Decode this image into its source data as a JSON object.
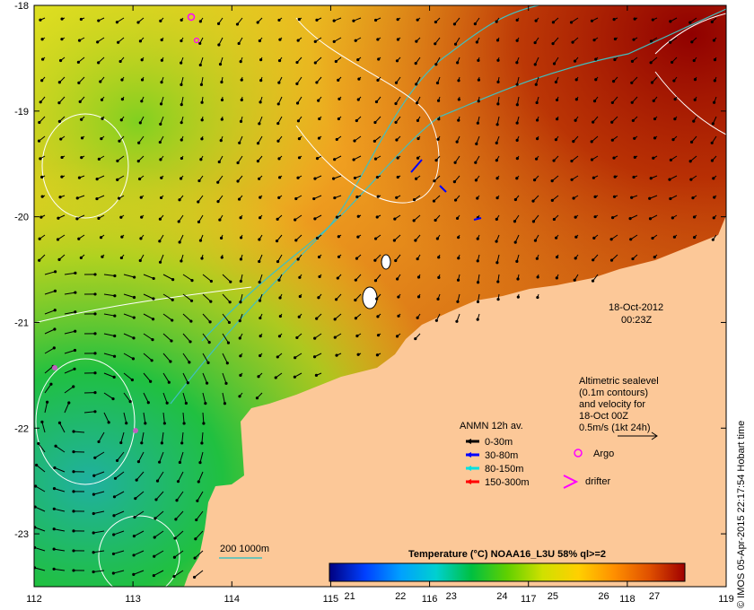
{
  "map": {
    "x_ticks": [
      "112",
      "113",
      "114",
      "115",
      "116",
      "117",
      "118",
      "119"
    ],
    "y_ticks": [
      "-18",
      "-19",
      "-20",
      "-21",
      "-22",
      "-23"
    ],
    "lon_range": [
      112,
      119
    ],
    "lat_range": [
      -23.5,
      -18
    ]
  },
  "timestamp": {
    "date": "18-Oct-2012",
    "time": "00:23Z"
  },
  "altimetry": {
    "line1": "Altimetric sealevel",
    "line2": "(0.1m contours)",
    "line3": "and velocity for",
    "line4": "18-Oct 00Z",
    "scale": "0.5m/s (1kt 24h)"
  },
  "legend": {
    "title": "ANMN 12h av.",
    "items": [
      {
        "label": "0-30m",
        "color": "#000000"
      },
      {
        "label": "30-80m",
        "color": "#0000ff"
      },
      {
        "label": "80-150m",
        "color": "#00e0e0"
      },
      {
        "label": "150-300m",
        "color": "#ff0000"
      }
    ],
    "argo": "Argo",
    "drifter": "drifter",
    "argo_color": "#ff00ff",
    "drifter_color": "#ff00ff"
  },
  "isobath": {
    "label": "200  1000m",
    "color": "#40c0c0"
  },
  "colorbar": {
    "title": "Temperature (°C) NOAA16_L3U 58% ql>=2",
    "ticks": [
      "21",
      "22",
      "23",
      "24",
      "25",
      "26",
      "27"
    ],
    "range": [
      20.6,
      27.6
    ],
    "stops": [
      "#000080",
      "#0040ff",
      "#00a0ff",
      "#00d0d0",
      "#00c040",
      "#60d000",
      "#d0e000",
      "#ffd000",
      "#ff9000",
      "#e05000",
      "#a00000"
    ]
  },
  "land_color": "#fcc898",
  "credit": "© IMOS 05-Apr-2015 22:17:54 Hobart time"
}
